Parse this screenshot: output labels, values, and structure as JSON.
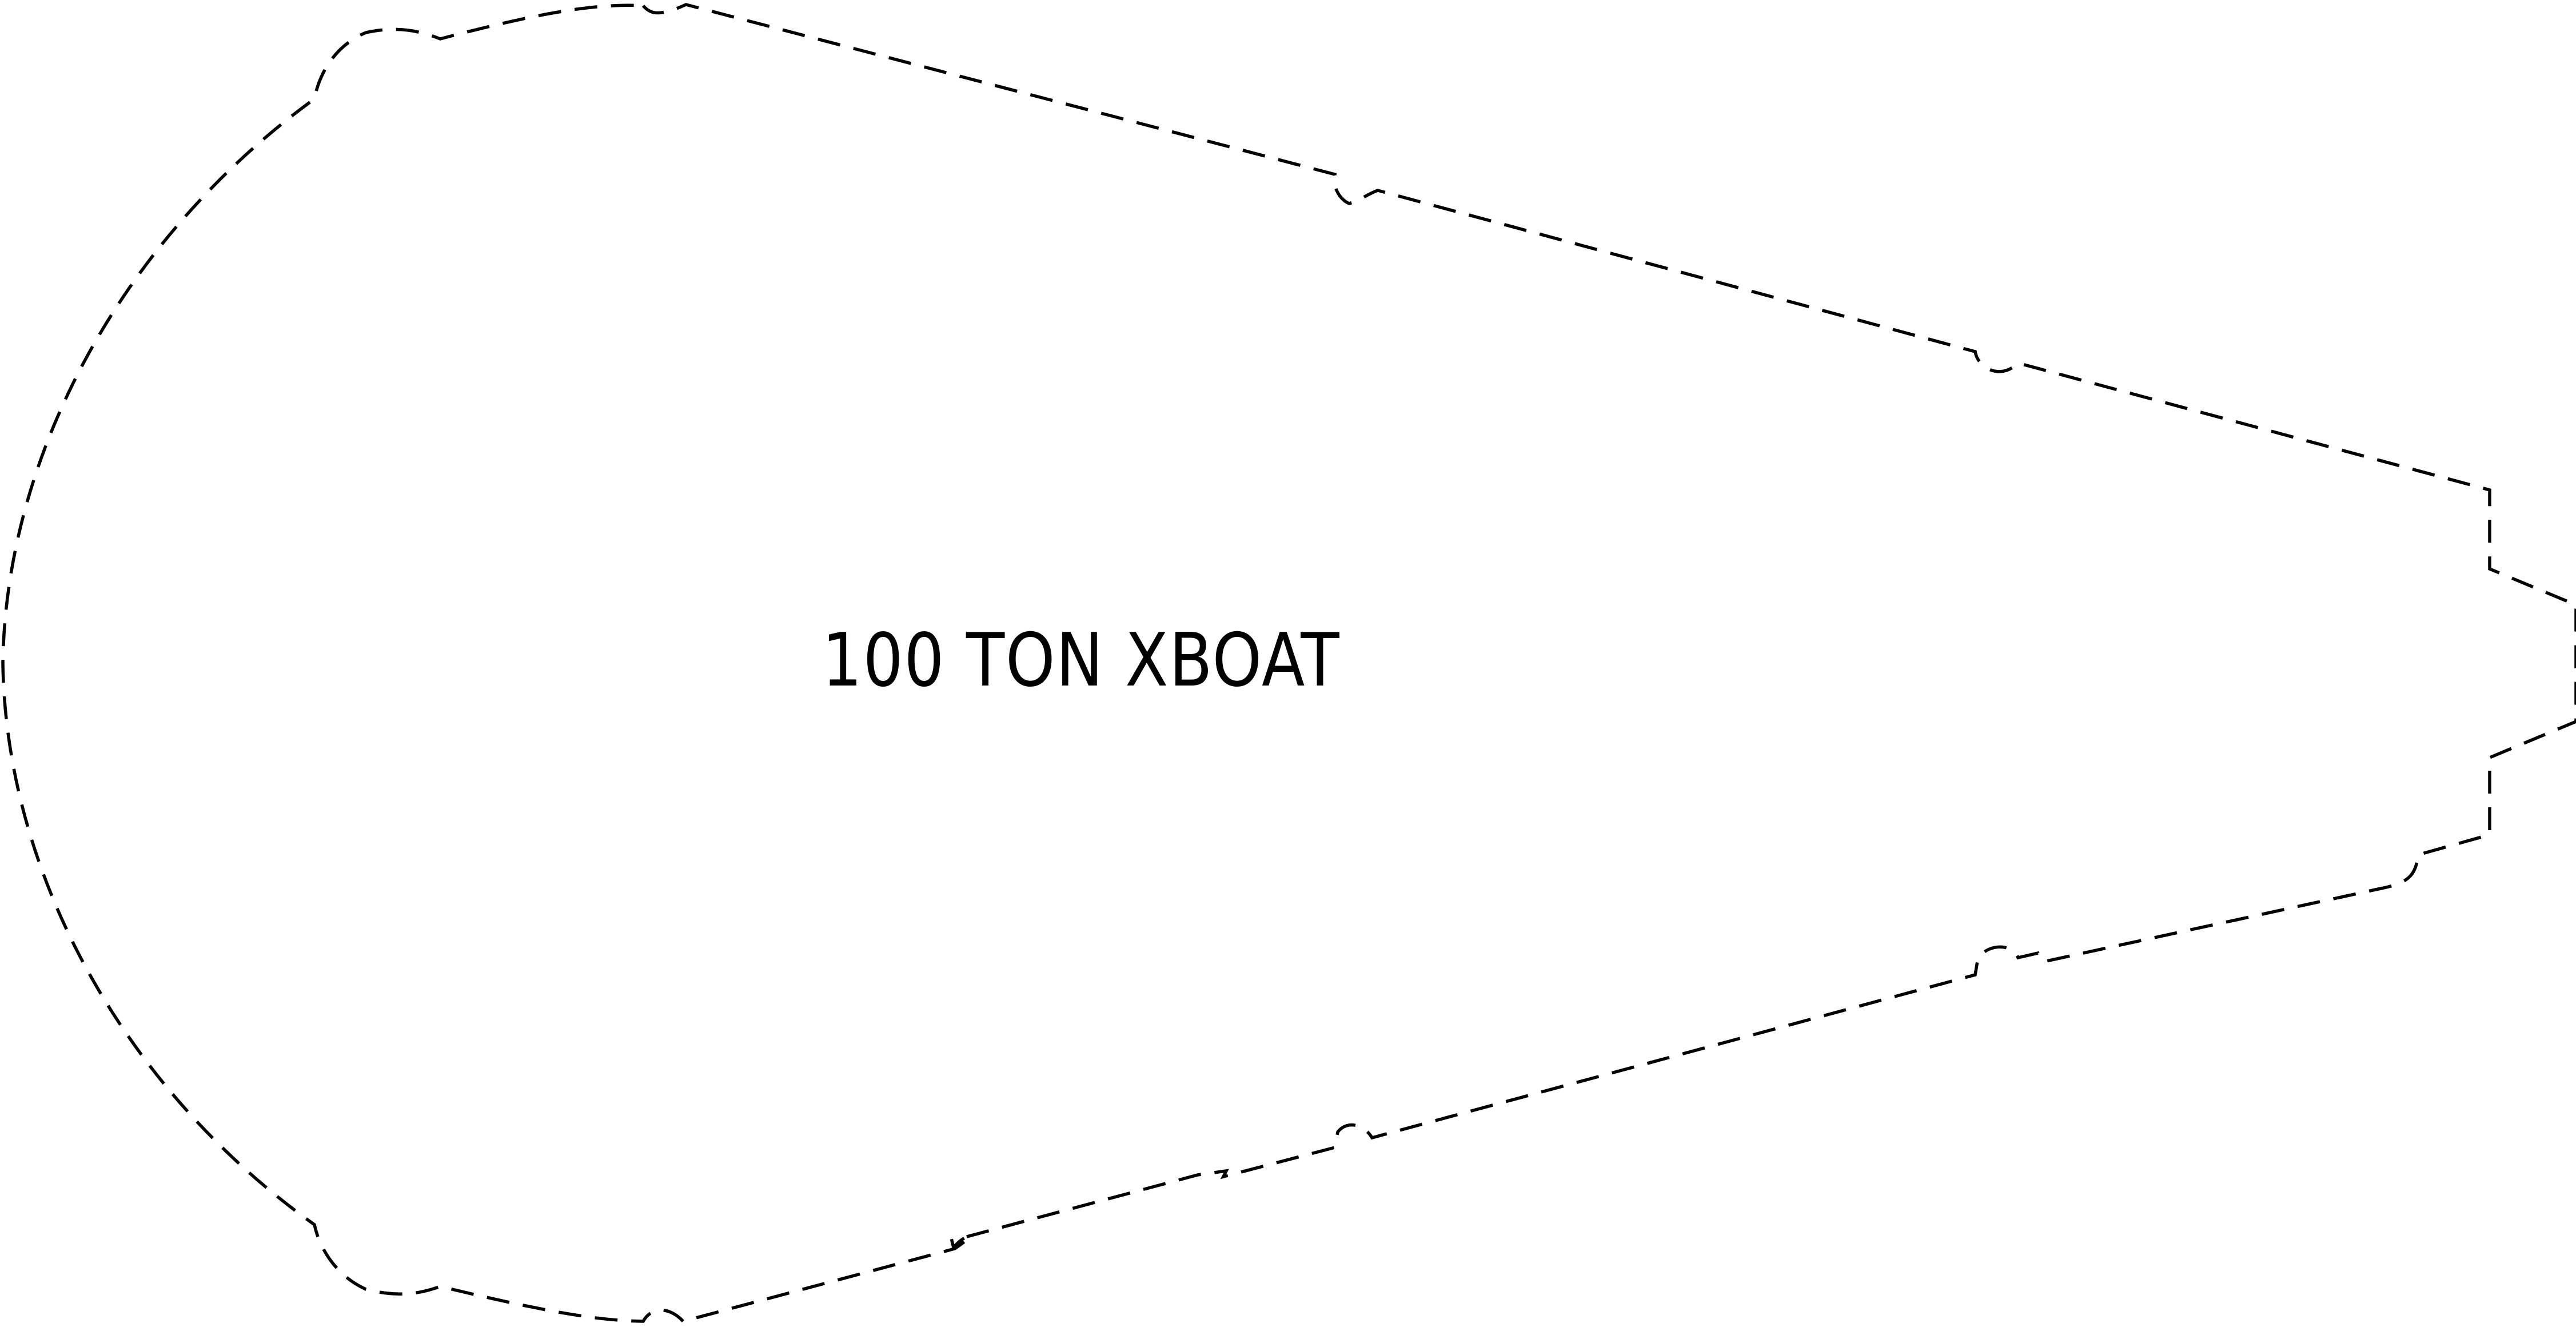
{
  "diagram": {
    "label": "100 TON XBOAT",
    "outline_color": "#000000",
    "background_color": "#ffffff"
  }
}
